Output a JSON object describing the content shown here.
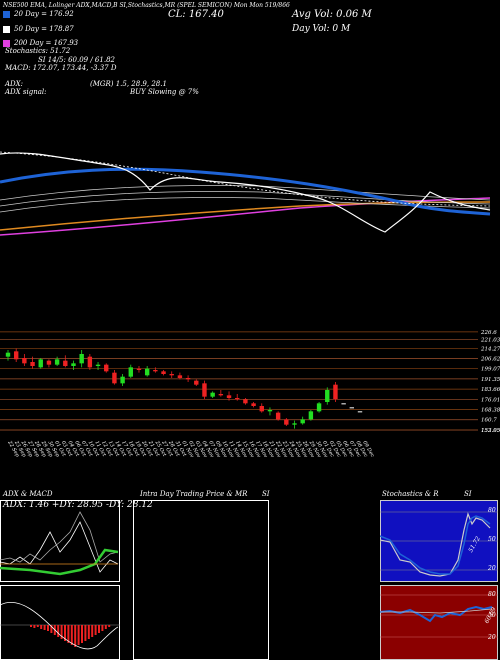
{
  "header": {
    "line1": "NSE500  EMA, Lolinger ADX,MACD,B        SI,Stochastics,MR          (SPEL SEMICON) Mon Mon 519/866",
    "close_label": "CL: 167.40",
    "vol_label": "Avg Vol: 0.06   M",
    "day_vol_label": "Day Vol: 0   M",
    "ema20_label": "20  Day  = 176.92",
    "ema50_label": "50  Day  = 178.87",
    "ema200_label": "200  Day  = 167.93",
    "stoch_label": "Stochastics: 51.72",
    "si_label": "SI 14/5: 60.09 / 61.82",
    "macd_label": "MACD: 172.07, 173.44, -3.37 D",
    "adx_label": "ADX:",
    "adx_value": "(MGR) 1.5, 28.9, 28.1",
    "adx_signal_label": "ADX  signal:",
    "adx_signal_value": "BUY Slowing @ 7%",
    "colors": {
      "ema20": "#1e63d6",
      "ema50": "#ffffff",
      "ema200": "#e040e0"
    }
  },
  "price_axis_labels": [
    "226.6",
    "221.03",
    "214.27",
    "206.62",
    "199.07",
    "191.35",
    "183.66",
    "176.01",
    "168.38",
    "160.7",
    "153.05",
    "152.95"
  ],
  "date_labels": [
    "22 Sep",
    "23 Sep",
    "26 Sep",
    "27 Sep",
    "28 Sep",
    "29 Sep",
    "30 Sep",
    "01 Oct",
    "03 Oct",
    "04 Oct",
    "06 Oct",
    "07 Oct",
    "10 Oct",
    "11 Oct",
    "12 Oct",
    "13 Oct",
    "14 Oct",
    "17 Oct",
    "18 Oct",
    "19 Oct",
    "20 Oct",
    "21 Oct",
    "25 Oct",
    "27 Oct",
    "28 Oct",
    "31 Oct",
    "01 Nov",
    "02 Nov",
    "03 Nov",
    "04 Nov",
    "07 Nov",
    "09 Nov",
    "10 Nov",
    "11 Nov",
    "14 Nov",
    "15 Nov",
    "16 Nov",
    "17 Nov",
    "18 Nov",
    "21 Nov",
    "22 Nov",
    "23 Nov",
    "24 Nov",
    "25 Nov",
    "28 Nov",
    "29 Nov",
    "30 Nov",
    "01 Dec",
    "02 Dec",
    "05 Dec",
    "06 Dec",
    "07 Dec",
    "08 Dec",
    "09 Dec"
  ],
  "panels": {
    "adx_macd_title": "ADX  & MACD",
    "adx_readout": "ADX: 1.46   +DY: 28.95  -DY: 28.12",
    "intraday_title": "Intra  Day  Trading Price  & MR",
    "intraday_suffix": "SI",
    "stoch_title": "Stochastics & R",
    "stoch_suffix": "SI",
    "stoch_levels": [
      "80",
      "50",
      "20"
    ],
    "si_levels": [
      "80",
      "50",
      "20"
    ],
    "stoch_value_tag": "51.72",
    "si_value_tag": "60.09"
  },
  "chart_data": {
    "type": "candlestick",
    "title": "SPEL SEMICON",
    "ylim": [
      150,
      228
    ],
    "candles": [
      {
        "o": 208,
        "h": 213,
        "l": 205,
        "c": 211
      },
      {
        "o": 212,
        "h": 214,
        "l": 204,
        "c": 206
      },
      {
        "o": 207,
        "h": 210,
        "l": 201,
        "c": 203
      },
      {
        "o": 204,
        "h": 208,
        "l": 199,
        "c": 201
      },
      {
        "o": 200,
        "h": 207,
        "l": 199,
        "c": 206
      },
      {
        "o": 205,
        "h": 206,
        "l": 200,
        "c": 202
      },
      {
        "o": 202,
        "h": 208,
        "l": 201,
        "c": 206
      },
      {
        "o": 205,
        "h": 209,
        "l": 200,
        "c": 201
      },
      {
        "o": 201,
        "h": 205,
        "l": 198,
        "c": 203
      },
      {
        "o": 203,
        "h": 213,
        "l": 200,
        "c": 210
      },
      {
        "o": 208,
        "h": 210,
        "l": 198,
        "c": 200
      },
      {
        "o": 201,
        "h": 204,
        "l": 198,
        "c": 202
      },
      {
        "o": 202,
        "h": 203,
        "l": 196,
        "c": 197
      },
      {
        "o": 196,
        "h": 198,
        "l": 187,
        "c": 188
      },
      {
        "o": 188,
        "h": 195,
        "l": 186,
        "c": 193
      },
      {
        "o": 193,
        "h": 202,
        "l": 192,
        "c": 200
      },
      {
        "o": 199,
        "h": 201,
        "l": 196,
        "c": 198
      },
      {
        "o": 194,
        "h": 201,
        "l": 193,
        "c": 199
      },
      {
        "o": 198,
        "h": 200,
        "l": 196,
        "c": 197
      },
      {
        "o": 197,
        "h": 198,
        "l": 194,
        "c": 195
      },
      {
        "o": 195,
        "h": 197,
        "l": 192,
        "c": 194
      },
      {
        "o": 194,
        "h": 196,
        "l": 191,
        "c": 192
      },
      {
        "o": 192,
        "h": 194,
        "l": 189,
        "c": 191
      },
      {
        "o": 190,
        "h": 191,
        "l": 186,
        "c": 187
      },
      {
        "o": 188,
        "h": 190,
        "l": 176,
        "c": 178
      },
      {
        "o": 178,
        "h": 182,
        "l": 177,
        "c": 181
      },
      {
        "o": 180,
        "h": 183,
        "l": 178,
        "c": 179
      },
      {
        "o": 179,
        "h": 182,
        "l": 175,
        "c": 177
      },
      {
        "o": 177,
        "h": 180,
        "l": 175,
        "c": 176
      },
      {
        "o": 176,
        "h": 177,
        "l": 172,
        "c": 173
      },
      {
        "o": 173,
        "h": 174,
        "l": 170,
        "c": 171
      },
      {
        "o": 171,
        "h": 173,
        "l": 166,
        "c": 167
      },
      {
        "o": 167,
        "h": 170,
        "l": 164,
        "c": 168
      },
      {
        "o": 166,
        "h": 167,
        "l": 160,
        "c": 161
      },
      {
        "o": 161,
        "h": 162,
        "l": 156,
        "c": 157
      },
      {
        "o": 157,
        "h": 160,
        "l": 154,
        "c": 158
      },
      {
        "o": 158,
        "h": 163,
        "l": 157,
        "c": 161
      },
      {
        "o": 161,
        "h": 168,
        "l": 160,
        "c": 167
      },
      {
        "o": 167,
        "h": 174,
        "l": 166,
        "c": 173
      },
      {
        "o": 174,
        "h": 185,
        "l": 172,
        "c": 183
      },
      {
        "o": 187,
        "h": 189,
        "l": 174,
        "c": 176
      },
      {
        "o": 173,
        "h": 173,
        "l": 173,
        "c": 173
      },
      {
        "o": 170,
        "h": 170,
        "l": 170,
        "c": 170
      },
      {
        "o": 167,
        "h": 167,
        "l": 167,
        "c": 167
      }
    ]
  }
}
